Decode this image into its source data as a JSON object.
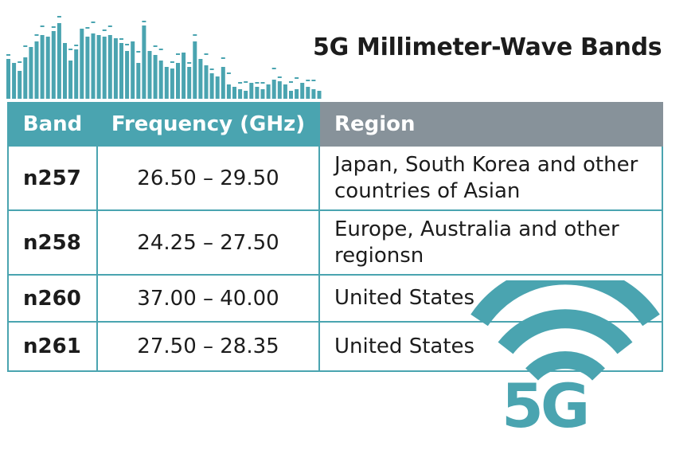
{
  "title": "5G Millimeter-Wave Bands",
  "table": {
    "headers": [
      "Band",
      "Frequency (GHz)",
      "Region"
    ],
    "rows": [
      {
        "band": "n257",
        "frequency": "26.50 – 29.50",
        "region": "Japan, South Korea and other countries of Asian"
      },
      {
        "band": "n258",
        "frequency": "24.25 – 27.50",
        "region": "Europe, Australia and other regionsn"
      },
      {
        "band": "n260",
        "frequency": "37.00 – 40.00",
        "region": "United States"
      },
      {
        "band": "n261",
        "frequency": "27.50 – 28.35",
        "region": "United States"
      }
    ]
  },
  "logo": {
    "text": "5G",
    "icon": "wifi-signal-icon"
  },
  "decoration": {
    "icon": "equalizer-bars-icon"
  },
  "colors": {
    "accent": "#4aa4b0",
    "header_gray": "#87929a",
    "text": "#1c1c1c"
  }
}
